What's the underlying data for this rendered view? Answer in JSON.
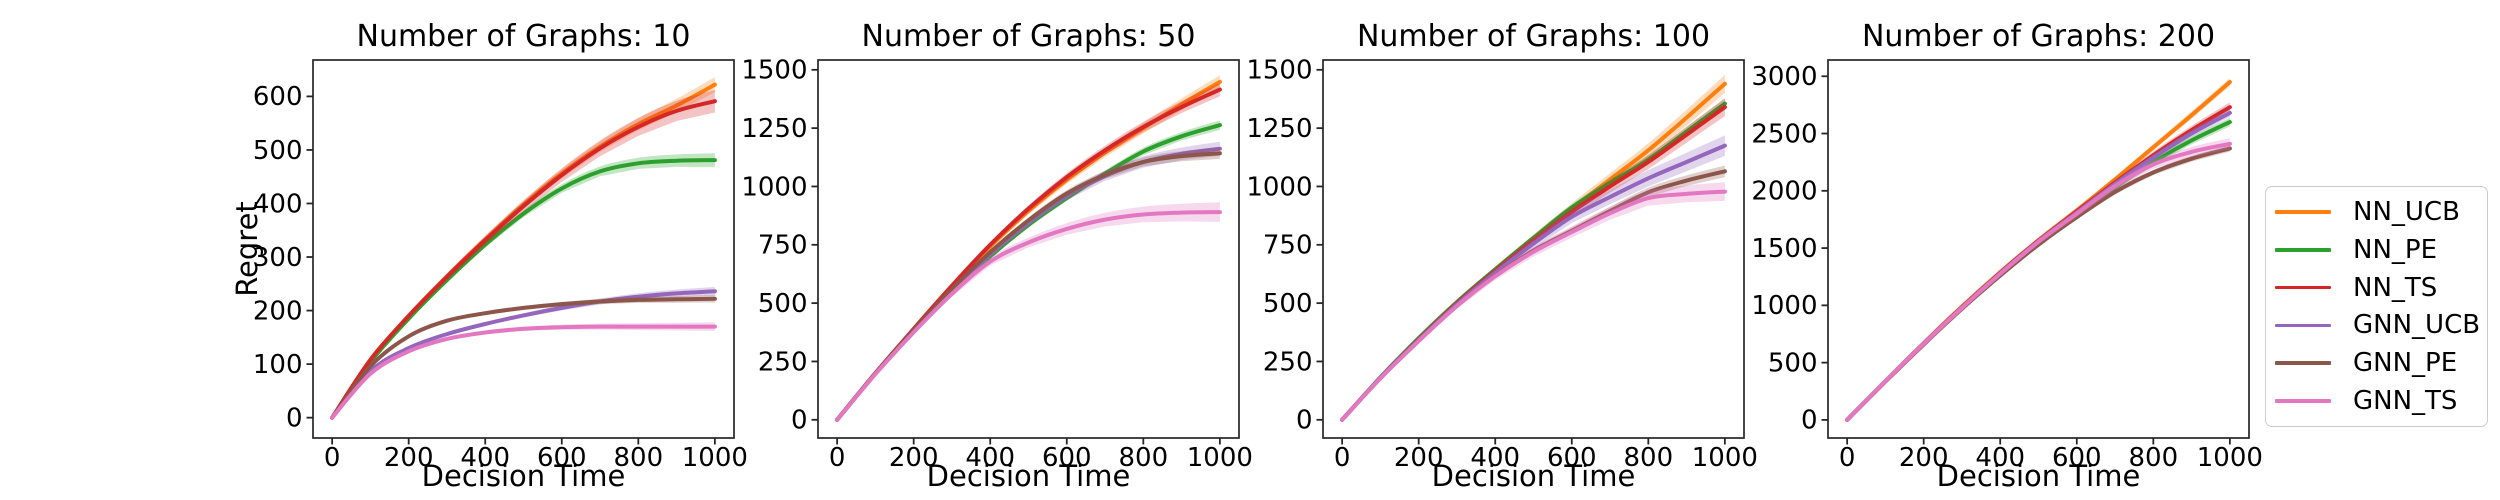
{
  "figure": {
    "background": "#ffffff"
  },
  "y_axis_label": "Regret",
  "legend": {
    "entries": [
      {
        "label": "NN_UCB",
        "color": "#ff7f0e"
      },
      {
        "label": "NN_PE",
        "color": "#2ca02c"
      },
      {
        "label": "NN_TS",
        "color": "#d62728"
      },
      {
        "label": "GNN_UCB",
        "color": "#9467bd"
      },
      {
        "label": "GNN_PE",
        "color": "#8c564b"
      },
      {
        "label": "GNN_TS",
        "color": "#e377c2"
      }
    ]
  },
  "chart_data": [
    {
      "type": "line",
      "title": "Number of Graphs: 10",
      "xlabel": "Decision Time",
      "ylabel": "Regret",
      "x": [
        0,
        100,
        200,
        300,
        400,
        500,
        600,
        700,
        800,
        900,
        1000
      ],
      "xticks": [
        0,
        200,
        400,
        600,
        800,
        1000
      ],
      "yticks": [
        0,
        100,
        200,
        300,
        400,
        500,
        600
      ],
      "xlim": [
        -50,
        1050
      ],
      "ylim": [
        -38,
        668
      ],
      "grid": false,
      "series": [
        {
          "name": "NN_UCB",
          "color": "#ff7f0e",
          "band": 14,
          "values": [
            0,
            108,
            190,
            264,
            333,
            398,
            456,
            506,
            548,
            583,
            622
          ]
        },
        {
          "name": "NN_PE",
          "color": "#2ca02c",
          "band": 13,
          "values": [
            0,
            104,
            185,
            257,
            323,
            381,
            428,
            460,
            475,
            480,
            481
          ]
        },
        {
          "name": "NN_TS",
          "color": "#d62728",
          "band": 21,
          "values": [
            0,
            108,
            190,
            263,
            331,
            395,
            453,
            503,
            543,
            573,
            591
          ]
        },
        {
          "name": "GNN_UCB",
          "color": "#9467bd",
          "band": 8,
          "values": [
            0,
            87,
            130,
            156,
            175,
            191,
            205,
            217,
            226,
            232,
            236
          ]
        },
        {
          "name": "GNN_PE",
          "color": "#8c564b",
          "band": 7,
          "values": [
            0,
            96,
            152,
            181,
            195,
            205,
            212,
            217,
            220,
            221,
            222
          ]
        },
        {
          "name": "GNN_TS",
          "color": "#e377c2",
          "band": 8,
          "values": [
            0,
            82,
            124,
            147,
            159,
            166,
            169,
            170,
            170,
            170,
            170
          ]
        }
      ]
    },
    {
      "type": "line",
      "title": "Number of Graphs: 50",
      "xlabel": "Decision Time",
      "ylabel": "",
      "x": [
        0,
        100,
        200,
        300,
        400,
        500,
        600,
        700,
        800,
        900,
        1000
      ],
      "xticks": [
        0,
        200,
        400,
        600,
        800,
        1000
      ],
      "yticks": [
        0,
        250,
        500,
        750,
        1000,
        1250,
        1500
      ],
      "xlim": [
        -50,
        1050
      ],
      "ylim": [
        -78,
        1542
      ],
      "grid": false,
      "series": [
        {
          "name": "NN_UCB",
          "color": "#ff7f0e",
          "band": 28,
          "values": [
            0,
            200,
            388,
            570,
            742,
            895,
            1028,
            1145,
            1250,
            1352,
            1448
          ]
        },
        {
          "name": "NN_PE",
          "color": "#2ca02c",
          "band": 20,
          "values": [
            0,
            198,
            380,
            548,
            700,
            835,
            950,
            1055,
            1150,
            1215,
            1263
          ]
        },
        {
          "name": "NN_TS",
          "color": "#d62728",
          "band": 28,
          "values": [
            0,
            200,
            390,
            575,
            750,
            905,
            1040,
            1155,
            1255,
            1340,
            1415
          ]
        },
        {
          "name": "GNN_UCB",
          "color": "#9467bd",
          "band": 30,
          "values": [
            0,
            198,
            382,
            555,
            710,
            845,
            960,
            1045,
            1105,
            1140,
            1162
          ]
        },
        {
          "name": "GNN_PE",
          "color": "#8c564b",
          "band": 24,
          "values": [
            0,
            200,
            385,
            560,
            718,
            855,
            970,
            1050,
            1105,
            1130,
            1142
          ]
        },
        {
          "name": "GNN_TS",
          "color": "#e377c2",
          "band": 42,
          "values": [
            0,
            196,
            375,
            540,
            678,
            760,
            818,
            858,
            880,
            888,
            890
          ]
        }
      ]
    },
    {
      "type": "line",
      "title": "Number of Graphs: 100",
      "xlabel": "Decision Time",
      "ylabel": "",
      "x": [
        0,
        100,
        200,
        300,
        400,
        500,
        600,
        700,
        800,
        900,
        1000
      ],
      "xticks": [
        0,
        200,
        400,
        600,
        800,
        1000
      ],
      "yticks": [
        0,
        250,
        500,
        750,
        1000,
        1250,
        1500
      ],
      "xlim": [
        -50,
        1050
      ],
      "ylim": [
        -78,
        1542
      ],
      "grid": false,
      "series": [
        {
          "name": "NN_UCB",
          "color": "#ff7f0e",
          "band": 38,
          "values": [
            0,
            180,
            345,
            500,
            640,
            775,
            905,
            1030,
            1155,
            1295,
            1440
          ]
        },
        {
          "name": "NN_PE",
          "color": "#2ca02c",
          "band": 22,
          "values": [
            0,
            182,
            350,
            505,
            645,
            780,
            910,
            1015,
            1115,
            1235,
            1355
          ]
        },
        {
          "name": "NN_TS",
          "color": "#d62728",
          "band": 38,
          "values": [
            0,
            180,
            345,
            500,
            638,
            768,
            890,
            1000,
            1105,
            1222,
            1340
          ]
        },
        {
          "name": "GNN_UCB",
          "color": "#9467bd",
          "band": 44,
          "values": [
            0,
            180,
            342,
            495,
            630,
            755,
            870,
            955,
            1035,
            1105,
            1175
          ]
        },
        {
          "name": "GNN_PE",
          "color": "#8c564b",
          "band": 25,
          "values": [
            0,
            178,
            338,
            488,
            618,
            725,
            810,
            895,
            975,
            1025,
            1065
          ]
        },
        {
          "name": "GNN_TS",
          "color": "#e377c2",
          "band": 40,
          "values": [
            0,
            178,
            338,
            488,
            615,
            720,
            805,
            885,
            950,
            968,
            978
          ]
        }
      ]
    },
    {
      "type": "line",
      "title": "Number of Graphs: 200",
      "xlabel": "Decision Time",
      "ylabel": "",
      "x": [
        0,
        100,
        200,
        300,
        400,
        500,
        600,
        700,
        800,
        900,
        1000
      ],
      "xticks": [
        0,
        200,
        400,
        600,
        800,
        1000
      ],
      "yticks": [
        0,
        500,
        1000,
        1500,
        2000,
        2500,
        3000
      ],
      "xlim": [
        -50,
        1050
      ],
      "ylim": [
        -158,
        3142
      ],
      "grid": false,
      "series": [
        {
          "name": "NN_UCB",
          "color": "#ff7f0e",
          "band": 35,
          "values": [
            0,
            340,
            670,
            990,
            1290,
            1570,
            1830,
            2100,
            2380,
            2660,
            2950
          ]
        },
        {
          "name": "NN_PE",
          "color": "#2ca02c",
          "band": 38,
          "values": [
            0,
            336,
            662,
            975,
            1270,
            1545,
            1790,
            2030,
            2250,
            2440,
            2600
          ]
        },
        {
          "name": "NN_TS",
          "color": "#d62728",
          "band": 42,
          "values": [
            0,
            338,
            668,
            985,
            1285,
            1565,
            1820,
            2070,
            2310,
            2530,
            2730
          ]
        },
        {
          "name": "GNN_UCB",
          "color": "#9467bd",
          "band": 35,
          "values": [
            0,
            337,
            665,
            980,
            1280,
            1560,
            1810,
            2060,
            2290,
            2500,
            2680
          ]
        },
        {
          "name": "GNN_PE",
          "color": "#8c564b",
          "band": 28,
          "values": [
            0,
            334,
            658,
            970,
            1260,
            1530,
            1770,
            1990,
            2160,
            2280,
            2370
          ]
        },
        {
          "name": "GNN_TS",
          "color": "#e377c2",
          "band": 48,
          "values": [
            0,
            338,
            664,
            978,
            1275,
            1555,
            1800,
            2040,
            2230,
            2340,
            2410
          ]
        }
      ]
    }
  ]
}
